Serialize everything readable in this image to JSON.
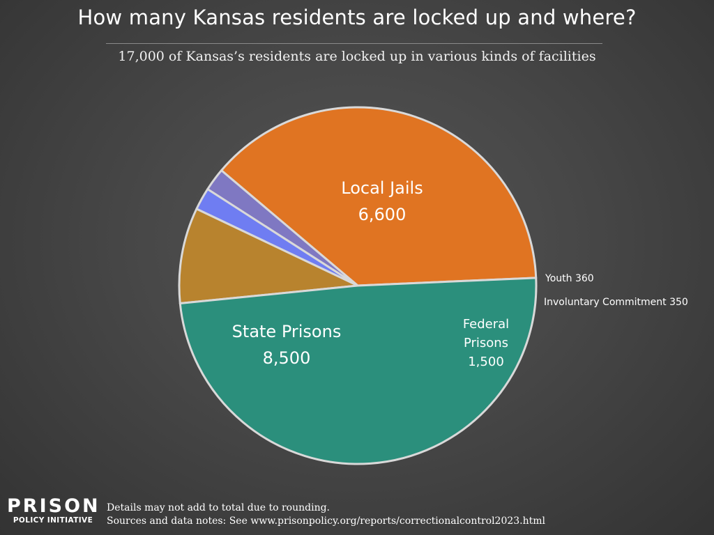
{
  "header": {
    "title": "How many Kansas residents are locked up and where?",
    "subtitle": "17,000 of Kansas’s residents are locked up in various kinds of facilities"
  },
  "chart_data": {
    "type": "pie",
    "total": 17000,
    "slices": [
      {
        "name": "Local Jails",
        "value": 6600,
        "label_lines": [
          "Local Jails",
          "6,600"
        ],
        "color": "#e07422"
      },
      {
        "name": "Youth",
        "value": 360,
        "label_lines": [
          "Youth 360"
        ],
        "color": "#7f78c2"
      },
      {
        "name": "Involuntary Commitment",
        "value": 350,
        "label_lines": [
          "Involuntary Commitment 350"
        ],
        "color": "#6f7df2"
      },
      {
        "name": "Federal Prisons",
        "value": 1500,
        "label_lines": [
          "Federal",
          "Prisons",
          "1,500"
        ],
        "color": "#b8832e"
      },
      {
        "name": "State Prisons",
        "value": 8500,
        "label_lines": [
          "State Prisons",
          "8,500"
        ],
        "color": "#2b8f7c"
      }
    ],
    "slice_border_color": "#d9d9d9"
  },
  "footer": {
    "note": "Details may not add to total due to rounding.",
    "sources": "Sources and data notes: See www.prisonpolicy.org/reports/correctionalcontrol2023.html"
  },
  "logo": {
    "main": "PRISON",
    "sub": "POLICY INITIATIVE"
  },
  "colors": {
    "background": "#474747",
    "text": "#ffffff"
  }
}
